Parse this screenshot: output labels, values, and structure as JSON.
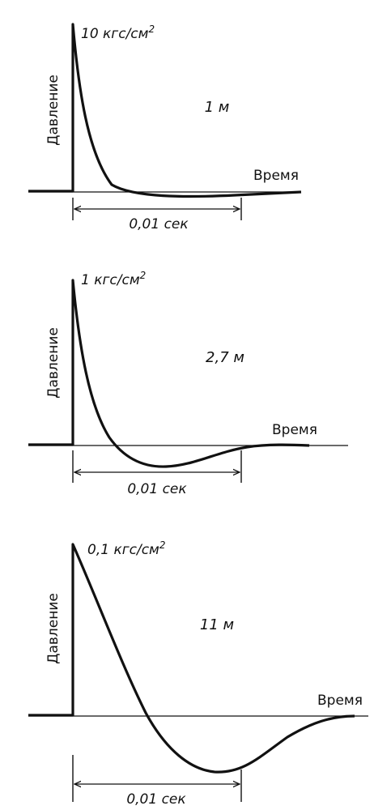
{
  "panels": [
    {
      "peak_label": "10 кгс/см",
      "peak_label_exp": "2",
      "distance": "1 м",
      "ylabel": "Давление",
      "xlabel": "Время",
      "interval": "0,01 сек"
    },
    {
      "peak_label": "1 кгс/см",
      "peak_label_exp": "2",
      "distance": "2,7 м",
      "ylabel": "Давление",
      "xlabel": "Время",
      "interval": "0,01 сек"
    },
    {
      "peak_label": "0,1 кгс/см",
      "peak_label_exp": "2",
      "distance": "11 м",
      "ylabel": "Давление",
      "xlabel": "Время",
      "interval": "0,01 сек"
    }
  ]
}
